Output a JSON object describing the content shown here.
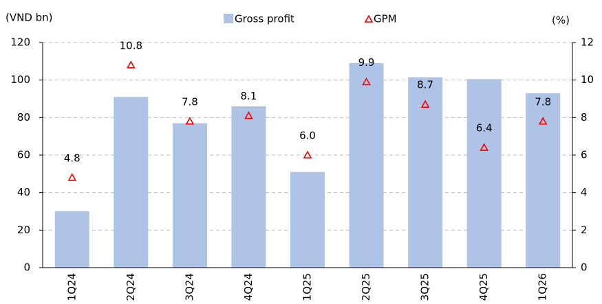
{
  "chart_data": {
    "type": "bar_marker",
    "y_label": "(VND bn)",
    "y2_label": "(%)",
    "categories": [
      "1Q24",
      "2Q24",
      "3Q24",
      "4Q24",
      "1Q25",
      "2Q25",
      "3Q25",
      "4Q25",
      "1Q26"
    ],
    "series": [
      {
        "name": "Gross profit",
        "color": "#aec3e6",
        "values": [
          30,
          91,
          77,
          86,
          51,
          109,
          101.5,
          100.5,
          93
        ]
      },
      {
        "name": "GPM",
        "color": "#ff0000",
        "axis": "y2",
        "values": [
          4.8,
          10.8,
          7.8,
          8.1,
          6.0,
          9.9,
          8.7,
          6.4,
          7.8
        ],
        "value_labels": [
          "4.8",
          "10.8",
          "7.8",
          "8.1",
          "6.0",
          "9.9",
          "8.7",
          "6.4",
          "7.8"
        ]
      }
    ],
    "ylim": [
      0,
      120
    ],
    "yticks": [
      0,
      20,
      40,
      60,
      80,
      100,
      120
    ],
    "y2lim": [
      0,
      12
    ],
    "y2ticks": [
      0,
      2,
      4,
      6,
      8,
      10,
      12
    ],
    "grid": true,
    "legend": "top"
  }
}
